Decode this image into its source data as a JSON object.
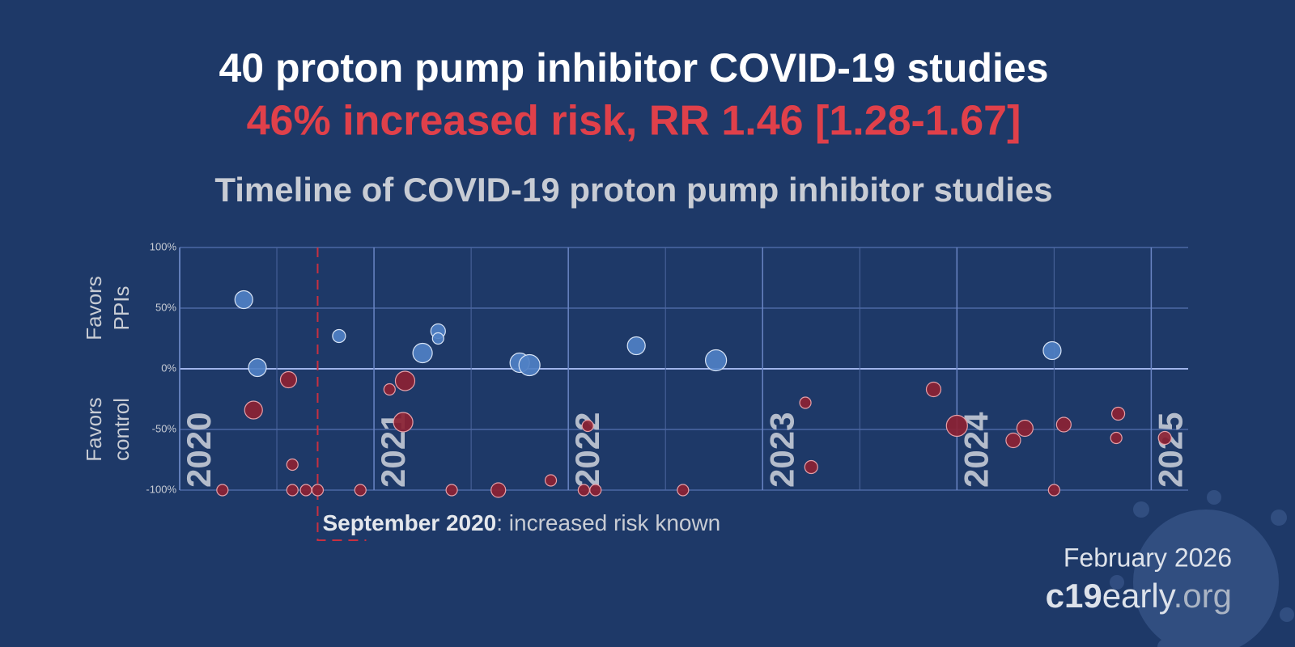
{
  "chart_data": {
    "type": "scatter",
    "title": "40 proton pump inhibitor COVID-19 studies",
    "subtitle": "46% increased risk, RR 1.46 [1.28-1.67]",
    "chart_title": "Timeline of COVID-19 proton pump inhibitor studies",
    "y_label_top": [
      "Favors",
      "PPIs"
    ],
    "y_label_bottom": [
      "Favors",
      "control"
    ],
    "x": [
      2020.22,
      2020.33,
      2020.38,
      2020.4,
      2020.56,
      2020.58,
      2020.58,
      2020.65,
      2020.71,
      2020.82,
      2020.93,
      2021.08,
      2021.15,
      2021.16,
      2021.25,
      2021.33,
      2021.33,
      2021.4,
      2021.64,
      2021.75,
      2021.8,
      2021.91,
      2022.08,
      2022.1,
      2022.14,
      2022.35,
      2022.59,
      2022.76,
      2023.22,
      2023.25,
      2023.88,
      2024.0,
      2024.29,
      2024.35,
      2024.49,
      2024.5,
      2024.55,
      2024.82,
      2024.83,
      2025.07
    ],
    "values": [
      -100,
      57,
      -34,
      1,
      -9,
      -79,
      -100,
      -100,
      -100,
      27,
      -100,
      -17,
      -44,
      -10,
      13,
      31,
      25,
      -100,
      -100,
      5,
      3,
      -92,
      -100,
      -47,
      -100,
      19,
      -100,
      7,
      -28,
      -81,
      -17,
      -47,
      -59,
      -49,
      15,
      -100,
      -46,
      -57,
      -37,
      -57
    ],
    "sizes": [
      7,
      11,
      11,
      11,
      10,
      7,
      7,
      7,
      7,
      8,
      7,
      7,
      12,
      12,
      12,
      9,
      7,
      7,
      9,
      12,
      13,
      7,
      7,
      7,
      7,
      11,
      7,
      13,
      7,
      8,
      9,
      13,
      9,
      10,
      11,
      7,
      9,
      7,
      8,
      8
    ],
    "positive_color": "#4f80c4",
    "negative_color": "#8c2233",
    "xlim": [
      2020,
      2025.19
    ],
    "xticks": [
      2020,
      2021,
      2022,
      2023,
      2024,
      2025
    ],
    "xminorticks": [
      2020.5,
      2021.5,
      2022.5,
      2023.5,
      2024.5
    ],
    "ylim": [
      -100,
      100
    ],
    "yticks": [
      {
        "value": 100,
        "label": "100%"
      },
      {
        "value": 50,
        "label": "50%"
      },
      {
        "value": 0,
        "label": "0%"
      },
      {
        "value": -50,
        "label": "-50%"
      },
      {
        "value": -100,
        "label": "-100%"
      }
    ],
    "grid": true,
    "annotation": {
      "x": 2020.71,
      "bold": "September 2020",
      "text": ": increased risk known",
      "color": "#c83040"
    },
    "date": "February 2026",
    "site": [
      "c19",
      "early",
      ".org"
    ]
  }
}
